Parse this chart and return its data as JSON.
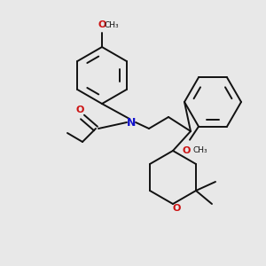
{
  "bg_color": "#e8e8e8",
  "bond_color": "#111111",
  "N_color": "#1111cc",
  "O_color": "#cc1111",
  "line_width": 1.4,
  "fig_size": [
    3.0,
    3.0
  ],
  "dpi": 100,
  "xlim": [
    0,
    300
  ],
  "ylim": [
    0,
    300
  ]
}
